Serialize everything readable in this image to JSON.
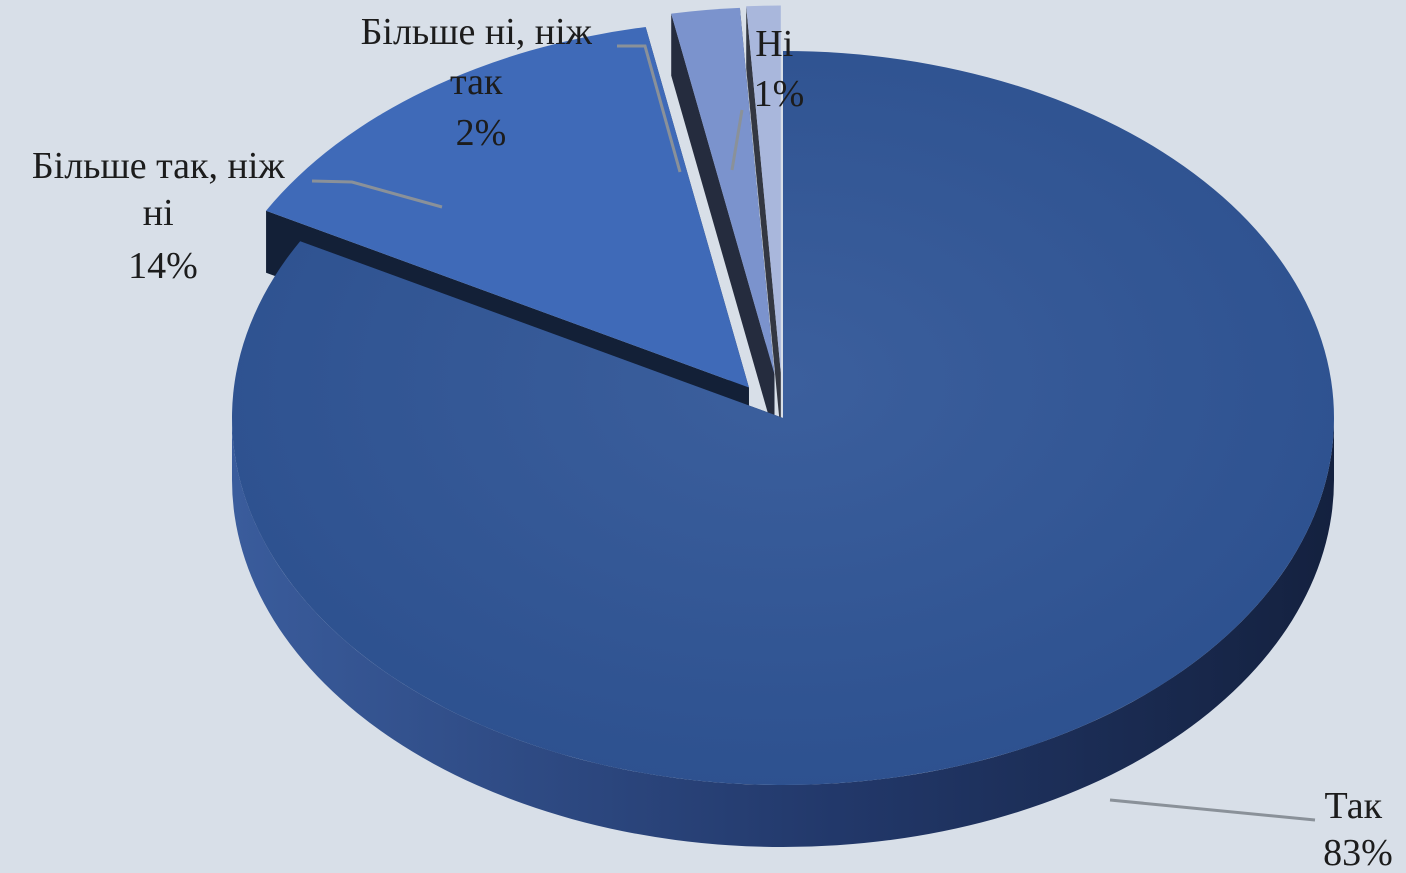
{
  "chart_data": {
    "type": "pie",
    "style": "3d-exploded",
    "legend": "none",
    "title": "",
    "slices": [
      {
        "name": "Так",
        "value": 83,
        "label": "83%",
        "color": "#2f5597",
        "label_lines": [
          "Так"
        ]
      },
      {
        "name": "Більше так, ніж ні",
        "value": 14,
        "label": "14%",
        "color": "#3f6ab8",
        "label_lines": [
          "Більше так, ніж",
          "ні"
        ]
      },
      {
        "name": "Більше ні, ніж так",
        "value": 2,
        "label": "2%",
        "color": "#7b93cd",
        "label_lines": [
          "Більше ні, ніж",
          "так"
        ]
      },
      {
        "name": "Ні",
        "value": 1,
        "label": "1%",
        "color": "#a9b7dc",
        "label_lines": [
          "Ні"
        ]
      }
    ]
  }
}
